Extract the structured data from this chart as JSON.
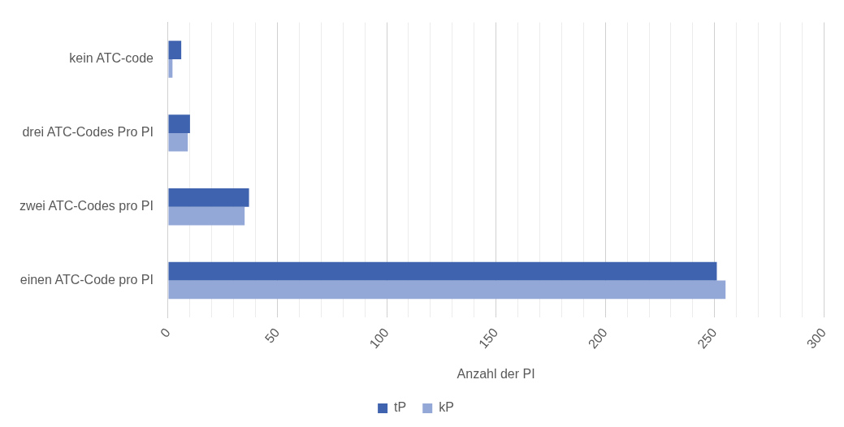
{
  "chart_data": {
    "type": "bar",
    "orientation": "horizontal",
    "xlabel": "Anzahl der PI",
    "categories": [
      "kein ATC-code",
      "drei ATC-Codes Pro PI",
      "zwei ATC-Codes pro PI",
      "einen ATC-Code pro PI"
    ],
    "series": [
      {
        "name": "tP",
        "color": "#3f63ae",
        "values": [
          6,
          10,
          37,
          251
        ]
      },
      {
        "name": "kP",
        "color": "#94a8d8",
        "values": [
          2,
          9,
          35,
          255
        ]
      }
    ],
    "xlim": [
      0,
      300
    ],
    "xticks": [
      0,
      {
        "value": 10,
        "label": null
      },
      {
        "value": 20,
        "label": null
      },
      {
        "value": 30,
        "label": null
      },
      {
        "value": 40,
        "label": null
      },
      50,
      {
        "value": 60,
        "label": null
      },
      {
        "value": 70,
        "label": null
      },
      {
        "value": 80,
        "label": null
      },
      {
        "value": 90,
        "label": null
      },
      100,
      {
        "value": 110,
        "label": null
      },
      {
        "value": 120,
        "label": null
      },
      {
        "value": 130,
        "label": null
      },
      {
        "value": 140,
        "label": null
      },
      150,
      {
        "value": 160,
        "label": null
      },
      {
        "value": 170,
        "label": null
      },
      {
        "value": 180,
        "label": null
      },
      {
        "value": 190,
        "label": null
      },
      200,
      {
        "value": 210,
        "label": null
      },
      {
        "value": 220,
        "label": null
      },
      {
        "value": 230,
        "label": null
      },
      {
        "value": 240,
        "label": null
      },
      250,
      {
        "value": 260,
        "label": null
      },
      {
        "value": 270,
        "label": null
      },
      {
        "value": 280,
        "label": null
      },
      {
        "value": 290,
        "label": null
      },
      300
    ],
    "grid": "x",
    "legend": "bottom"
  }
}
